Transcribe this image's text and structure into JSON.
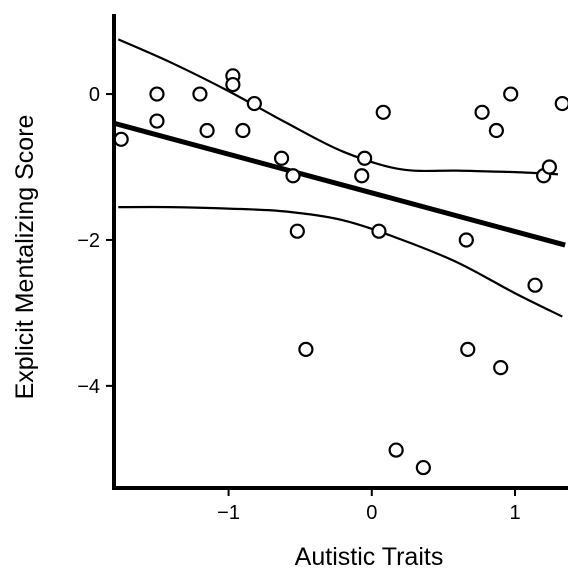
{
  "chart_data": {
    "type": "scatter",
    "title": "",
    "xlabel": "Autistic Traits",
    "ylabel": "Explicit Mentalizing Score",
    "xlim": [
      -1.8,
      1.37
    ],
    "ylim": [
      -5.4,
      1.07
    ],
    "x_ticks": [
      -1,
      0,
      1
    ],
    "x_tick_labels": [
      "−1",
      "0",
      "1"
    ],
    "y_ticks": [
      0,
      -2,
      -4
    ],
    "y_tick_labels": [
      "0",
      "−2",
      "−4"
    ],
    "grid": false,
    "legend": "none",
    "points": [
      {
        "x": -1.75,
        "y": -0.62
      },
      {
        "x": -1.5,
        "y": 0.0
      },
      {
        "x": -1.5,
        "y": -0.37
      },
      {
        "x": -1.2,
        "y": 0.0
      },
      {
        "x": -1.15,
        "y": -0.5
      },
      {
        "x": -0.97,
        "y": 0.25
      },
      {
        "x": -0.97,
        "y": 0.13
      },
      {
        "x": -0.9,
        "y": -0.5
      },
      {
        "x": -0.82,
        "y": -0.13
      },
      {
        "x": -0.63,
        "y": -0.88
      },
      {
        "x": -0.55,
        "y": -1.12
      },
      {
        "x": -0.52,
        "y": -1.88
      },
      {
        "x": -0.46,
        "y": -3.5
      },
      {
        "x": -0.05,
        "y": -0.88
      },
      {
        "x": -0.07,
        "y": -1.12
      },
      {
        "x": 0.05,
        "y": -1.88
      },
      {
        "x": 0.08,
        "y": -0.25
      },
      {
        "x": 0.17,
        "y": -4.88
      },
      {
        "x": 0.36,
        "y": -5.12
      },
      {
        "x": 0.66,
        "y": -2.0
      },
      {
        "x": 0.67,
        "y": -3.5
      },
      {
        "x": 0.77,
        "y": -0.25
      },
      {
        "x": 0.87,
        "y": -0.5
      },
      {
        "x": 0.9,
        "y": -3.75
      },
      {
        "x": 0.97,
        "y": 0.0
      },
      {
        "x": 1.14,
        "y": -2.62
      },
      {
        "x": 1.2,
        "y": -1.12
      },
      {
        "x": 1.24,
        "y": -1.0
      },
      {
        "x": 1.33,
        "y": -0.13
      }
    ],
    "fit_line": {
      "x": [
        -1.8,
        1.35
      ],
      "y": [
        -0.4,
        -2.07
      ]
    },
    "upper_band": {
      "x": [
        -1.77,
        -1.4,
        -1.0,
        -0.6,
        -0.2,
        0.2,
        0.6,
        1.0,
        1.3
      ],
      "y": [
        0.75,
        0.43,
        0.04,
        -0.39,
        -0.79,
        -1.03,
        -1.05,
        -1.07,
        -1.1
      ]
    },
    "lower_band": {
      "x": [
        -1.77,
        -1.4,
        -1.0,
        -0.6,
        -0.2,
        0.2,
        0.6,
        1.0,
        1.33
      ],
      "y": [
        -1.55,
        -1.55,
        -1.57,
        -1.61,
        -1.73,
        -1.99,
        -2.31,
        -2.73,
        -3.05
      ]
    }
  }
}
